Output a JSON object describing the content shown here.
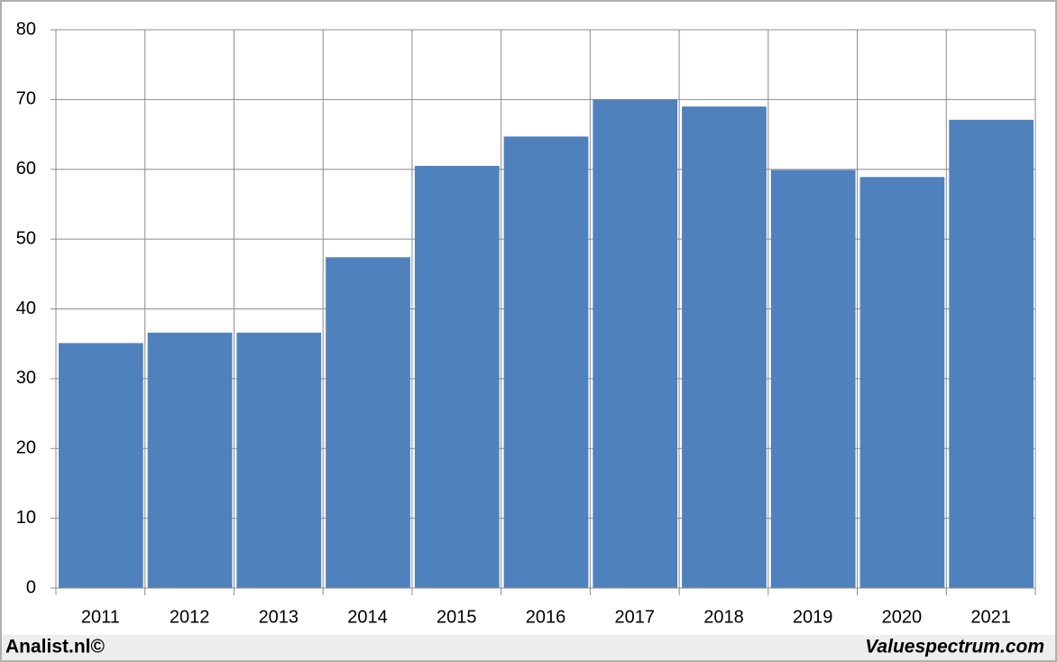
{
  "chart_data": {
    "type": "bar",
    "categories": [
      "2011",
      "2012",
      "2013",
      "2014",
      "2015",
      "2016",
      "2017",
      "2018",
      "2019",
      "2020",
      "2021"
    ],
    "values": [
      35.1,
      36.6,
      36.6,
      47.4,
      60.5,
      64.7,
      70.0,
      69.0,
      59.9,
      58.9,
      67.1
    ],
    "color": "#4f81bd",
    "ylim": [
      0,
      80
    ],
    "yticks": [
      0,
      10,
      20,
      30,
      40,
      50,
      60,
      70,
      80
    ],
    "grid": true,
    "annotations": [
      "Analist.nl©",
      "Valuespectrum.com"
    ]
  }
}
